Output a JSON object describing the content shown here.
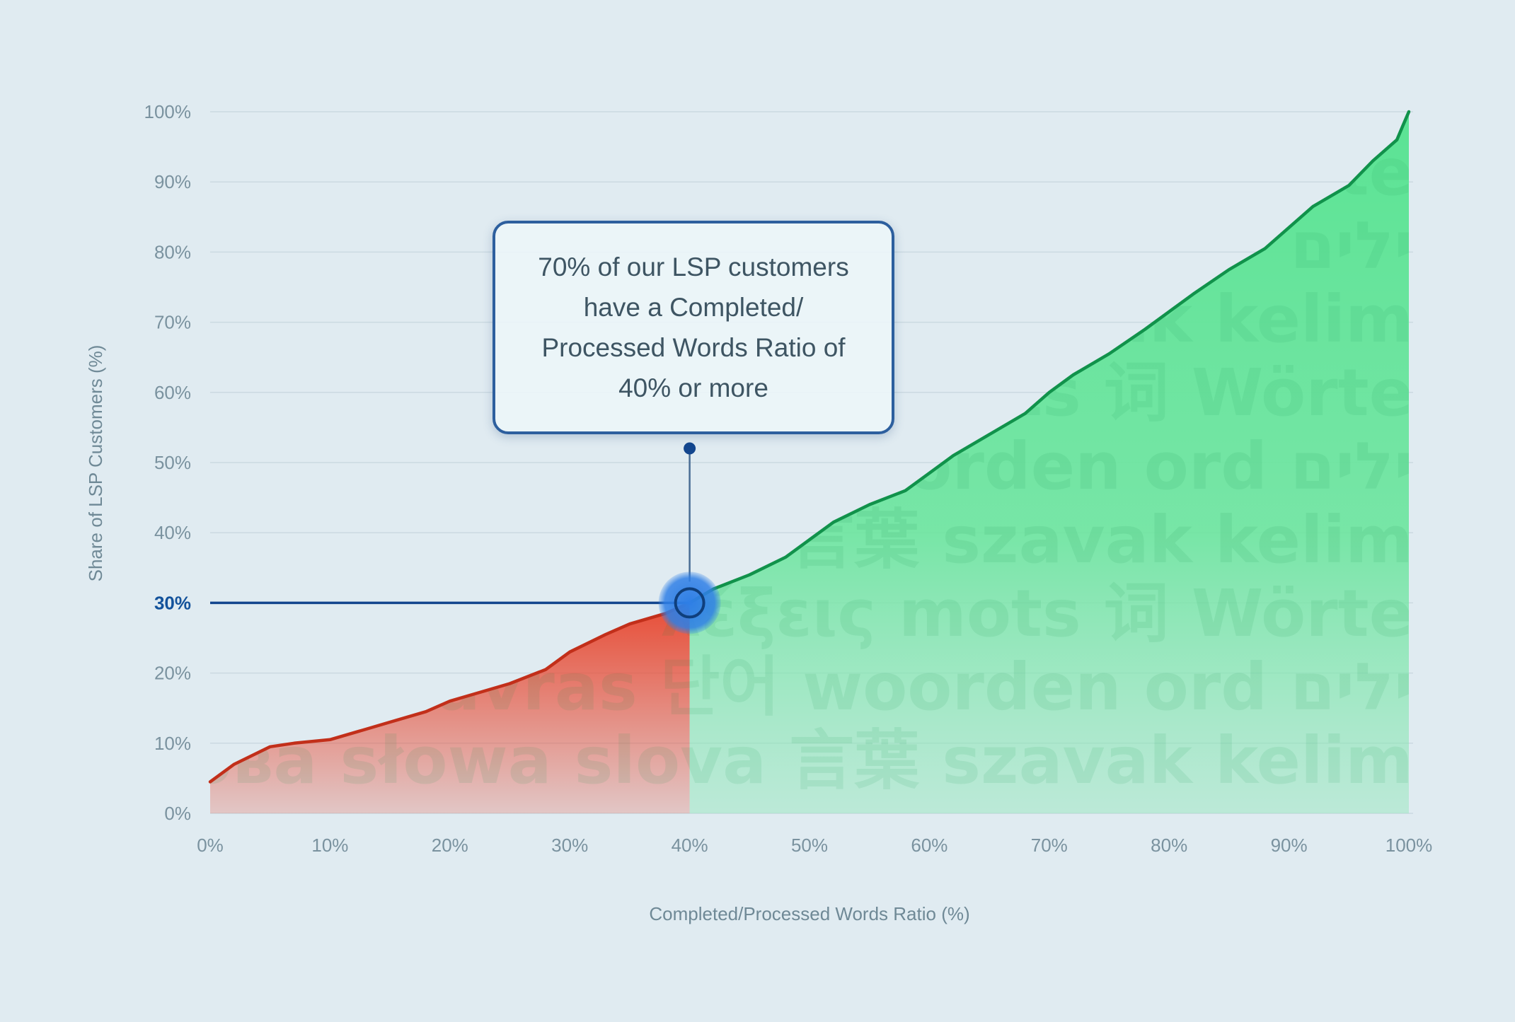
{
  "chart_data": {
    "type": "area",
    "title": "",
    "xlabel": "Completed/Processed Words Ratio (%)",
    "ylabel": "Share of LSP Customers (%)",
    "xlim": [
      0,
      100
    ],
    "ylim": [
      0,
      100
    ],
    "x_ticks": [
      "0%",
      "10%",
      "20%",
      "30%",
      "40%",
      "50%",
      "60%",
      "70%",
      "80%",
      "90%",
      "100%"
    ],
    "y_ticks": [
      "0%",
      "10%",
      "20%",
      "30%",
      "40%",
      "50%",
      "60%",
      "70%",
      "80%",
      "90%",
      "100%"
    ],
    "grid": "horizontal",
    "x": [
      0,
      2,
      5,
      7,
      10,
      13,
      15,
      18,
      20,
      22,
      25,
      28,
      30,
      33,
      35,
      38,
      40,
      42,
      45,
      48,
      50,
      52,
      55,
      58,
      60,
      62,
      65,
      68,
      70,
      72,
      75,
      78,
      80,
      82,
      85,
      88,
      90,
      92,
      95,
      97,
      99,
      99.5,
      100
    ],
    "y": [
      4.5,
      7,
      9.5,
      10,
      10.5,
      12,
      13,
      14.5,
      16,
      17,
      18.5,
      20.5,
      23,
      25.5,
      27,
      28.5,
      30,
      32,
      34,
      36.5,
      39,
      41.5,
      44,
      46,
      48.5,
      51,
      54,
      57,
      60,
      62.5,
      65.5,
      69,
      71.5,
      74,
      77.5,
      80.5,
      83.5,
      86.5,
      89.5,
      93,
      96,
      98,
      100
    ],
    "threshold": {
      "x": 40,
      "y": 30,
      "y_label": "30%"
    },
    "annotation": "70% of our LSP customers have a Completed/ Processed Words Ratio of 40% or more",
    "colors": {
      "below_threshold": "#e8442c",
      "below_threshold_line": "#c22f1a",
      "above_threshold": "#5be394",
      "above_threshold_line": "#11924b",
      "guide": "#13468e",
      "marker": "#2f7fe6"
    },
    "watermark_words": [
      "ilim te",
      "ילים",
      "szavak kelim",
      "mots 词 Wörte",
      "woorden ord ילים",
      "言葉 szavak kelim",
      "λέξεις mots 词 Wörte",
      "palavras 단어 woorden ord ילים",
      "слова słowa slova 言葉 szavak kelim"
    ]
  }
}
